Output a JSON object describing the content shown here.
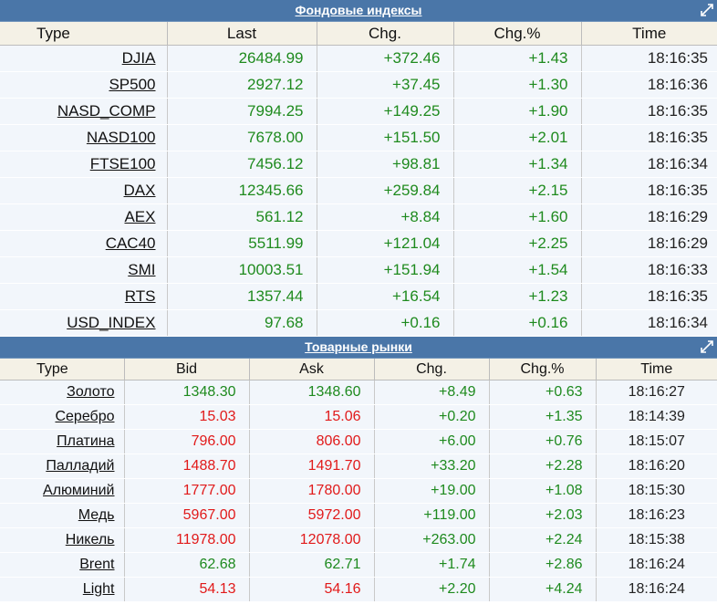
{
  "indices": {
    "title": "Фондовые индексы",
    "columns": [
      "Type",
      "Last",
      "Chg.",
      "Chg.%",
      "Time"
    ],
    "rows": [
      {
        "name": "DJIA",
        "last": "26484.99",
        "chg": "+372.46",
        "pct": "+1.43",
        "time": "18:16:35"
      },
      {
        "name": "SP500",
        "last": "2927.12",
        "chg": "+37.45",
        "pct": "+1.30",
        "time": "18:16:36"
      },
      {
        "name": "NASD_COMP",
        "last": "7994.25",
        "chg": "+149.25",
        "pct": "+1.90",
        "time": "18:16:35"
      },
      {
        "name": "NASD100",
        "last": "7678.00",
        "chg": "+151.50",
        "pct": "+2.01",
        "time": "18:16:35"
      },
      {
        "name": "FTSE100",
        "last": "7456.12",
        "chg": "+98.81",
        "pct": "+1.34",
        "time": "18:16:34"
      },
      {
        "name": "DAX",
        "last": "12345.66",
        "chg": "+259.84",
        "pct": "+2.15",
        "time": "18:16:35"
      },
      {
        "name": "AEX",
        "last": "561.12",
        "chg": "+8.84",
        "pct": "+1.60",
        "time": "18:16:29"
      },
      {
        "name": "CAC40",
        "last": "5511.99",
        "chg": "+121.04",
        "pct": "+2.25",
        "time": "18:16:29"
      },
      {
        "name": "SMI",
        "last": "10003.51",
        "chg": "+151.94",
        "pct": "+1.54",
        "time": "18:16:33"
      },
      {
        "name": "RTS",
        "last": "1357.44",
        "chg": "+16.54",
        "pct": "+1.23",
        "time": "18:16:35"
      },
      {
        "name": "USD_INDEX",
        "last": "97.68",
        "chg": "+0.16",
        "pct": "+0.16",
        "time": "18:16:34"
      }
    ]
  },
  "commodities": {
    "title": "Товарные рынки",
    "columns": [
      "Type",
      "Bid",
      "Ask",
      "Chg.",
      "Chg.%",
      "Time"
    ],
    "rows": [
      {
        "name": "Золото",
        "bid": "1348.30",
        "ask": "1348.60",
        "dir": "up",
        "chg": "+8.49",
        "pct": "+0.63",
        "time": "18:16:27"
      },
      {
        "name": "Серебро",
        "bid": "15.03",
        "ask": "15.06",
        "dir": "dn",
        "chg": "+0.20",
        "pct": "+1.35",
        "time": "18:14:39"
      },
      {
        "name": "Платина",
        "bid": "796.00",
        "ask": "806.00",
        "dir": "dn",
        "chg": "+6.00",
        "pct": "+0.76",
        "time": "18:15:07"
      },
      {
        "name": "Палладий",
        "bid": "1488.70",
        "ask": "1491.70",
        "dir": "dn",
        "chg": "+33.20",
        "pct": "+2.28",
        "time": "18:16:20"
      },
      {
        "name": "Алюминий",
        "bid": "1777.00",
        "ask": "1780.00",
        "dir": "dn",
        "chg": "+19.00",
        "pct": "+1.08",
        "time": "18:15:30"
      },
      {
        "name": "Медь",
        "bid": "5967.00",
        "ask": "5972.00",
        "dir": "dn",
        "chg": "+119.00",
        "pct": "+2.03",
        "time": "18:16:23"
      },
      {
        "name": "Никель",
        "bid": "11978.00",
        "ask": "12078.00",
        "dir": "dn",
        "chg": "+263.00",
        "pct": "+2.24",
        "time": "18:15:38"
      },
      {
        "name": "Brent",
        "bid": "62.68",
        "ask": "62.71",
        "dir": "up",
        "chg": "+1.74",
        "pct": "+2.86",
        "time": "18:16:24"
      },
      {
        "name": "Light",
        "bid": "54.13",
        "ask": "54.16",
        "dir": "dn",
        "chg": "+2.20",
        "pct": "+4.24",
        "time": "18:16:24"
      }
    ]
  },
  "colors": {
    "header_bar": "#4a76a8",
    "column_header_bg": "#f4f1e6",
    "positive": "#1e8a1e",
    "negative": "#e11a1a"
  },
  "icons": {
    "expand": "expand-icon"
  }
}
